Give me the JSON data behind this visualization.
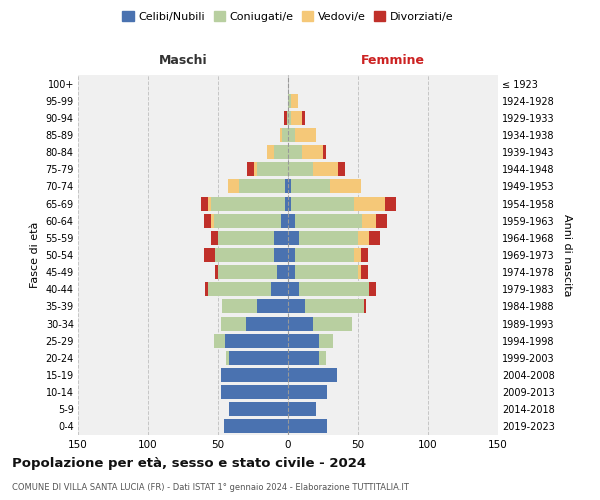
{
  "age_groups": [
    "0-4",
    "5-9",
    "10-14",
    "15-19",
    "20-24",
    "25-29",
    "30-34",
    "35-39",
    "40-44",
    "45-49",
    "50-54",
    "55-59",
    "60-64",
    "65-69",
    "70-74",
    "75-79",
    "80-84",
    "85-89",
    "90-94",
    "95-99",
    "100+"
  ],
  "birth_years": [
    "2019-2023",
    "2014-2018",
    "2009-2013",
    "2004-2008",
    "1999-2003",
    "1994-1998",
    "1989-1993",
    "1984-1988",
    "1979-1983",
    "1974-1978",
    "1969-1973",
    "1964-1968",
    "1959-1963",
    "1954-1958",
    "1949-1953",
    "1944-1948",
    "1939-1943",
    "1934-1938",
    "1929-1933",
    "1924-1928",
    "≤ 1923"
  ],
  "maschi": {
    "celibi": [
      46,
      42,
      48,
      48,
      42,
      45,
      30,
      22,
      12,
      8,
      10,
      10,
      5,
      2,
      2,
      0,
      0,
      0,
      0,
      0,
      0
    ],
    "coniugati": [
      0,
      0,
      0,
      0,
      2,
      8,
      18,
      25,
      45,
      42,
      42,
      40,
      48,
      53,
      33,
      22,
      10,
      4,
      1,
      0,
      0
    ],
    "vedovi": [
      0,
      0,
      0,
      0,
      0,
      0,
      0,
      0,
      0,
      0,
      0,
      0,
      2,
      2,
      8,
      2,
      5,
      2,
      0,
      0,
      0
    ],
    "divorziati": [
      0,
      0,
      0,
      0,
      0,
      0,
      0,
      0,
      2,
      2,
      8,
      5,
      5,
      5,
      0,
      5,
      0,
      0,
      2,
      0,
      0
    ]
  },
  "femmine": {
    "nubili": [
      28,
      20,
      28,
      35,
      22,
      22,
      18,
      12,
      8,
      5,
      5,
      8,
      5,
      2,
      2,
      0,
      0,
      0,
      0,
      0,
      0
    ],
    "coniugate": [
      0,
      0,
      0,
      0,
      5,
      10,
      28,
      42,
      50,
      45,
      42,
      42,
      48,
      45,
      28,
      18,
      10,
      5,
      2,
      2,
      0
    ],
    "vedove": [
      0,
      0,
      0,
      0,
      0,
      0,
      0,
      0,
      0,
      2,
      5,
      8,
      10,
      22,
      22,
      18,
      15,
      15,
      8,
      5,
      0
    ],
    "divorziate": [
      0,
      0,
      0,
      0,
      0,
      0,
      0,
      2,
      5,
      5,
      5,
      8,
      8,
      8,
      0,
      5,
      2,
      0,
      2,
      0,
      0
    ]
  },
  "colors": {
    "celibi_nubili": "#4a72b0",
    "coniugati": "#b8cfa0",
    "vedovi": "#f5c878",
    "divorziati": "#c0302a"
  },
  "title": "Popolazione per età, sesso e stato civile - 2024",
  "subtitle": "COMUNE DI VILLA SANTA LUCIA (FR) - Dati ISTAT 1° gennaio 2024 - Elaborazione TUTTITALIA.IT",
  "label_maschi": "Maschi",
  "label_femmine": "Femmine",
  "ylabel_left": "Fasce di età",
  "ylabel_right": "Anni di nascita",
  "xlim": 150,
  "bg_color": "#ffffff",
  "plot_bg": "#f0f0f0",
  "grid_color": "#cccccc"
}
